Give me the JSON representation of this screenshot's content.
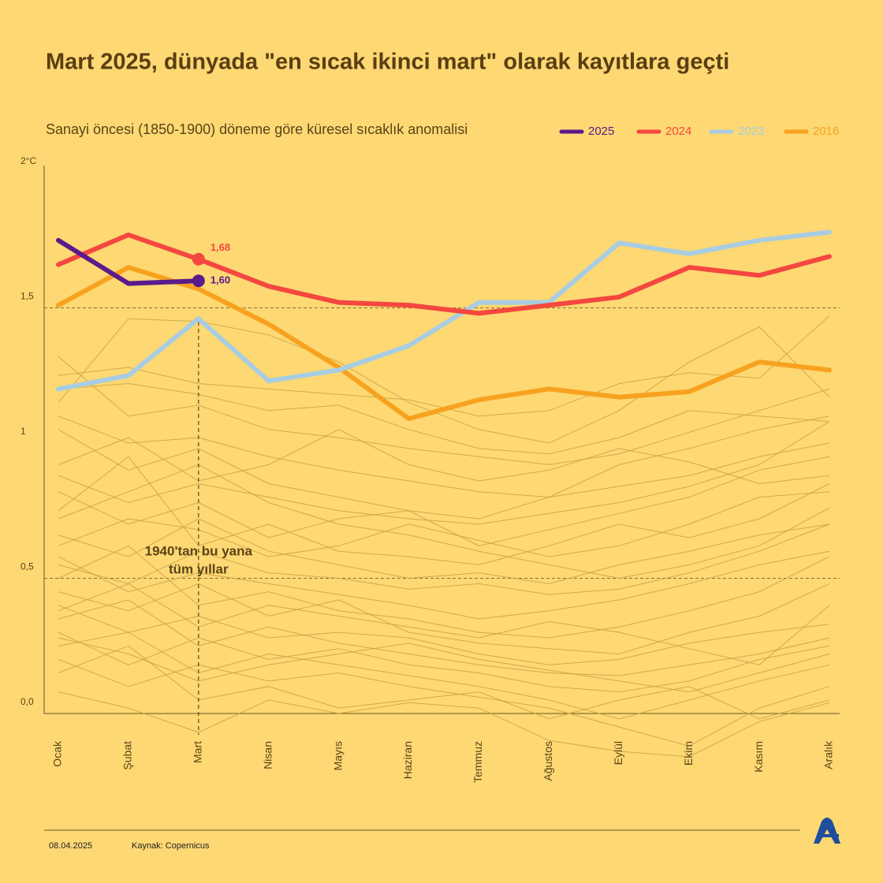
{
  "chart_data": {
    "type": "line",
    "title": "Mart 2025, dünyada \"en sıcak ikinci mart\" olarak kayıtlara geçti",
    "subtitle": "Sanayi öncesi (1850-1900) döneme göre küresel sıcaklık anomalisi",
    "categories": [
      "Ocak",
      "Şubat",
      "Mart",
      "Nisan",
      "Mayıs",
      "Haziran",
      "Temmuz",
      "Ağustos",
      "Eylül",
      "Ekim",
      "Kasım",
      "Aralık"
    ],
    "ylim": [
      0,
      2
    ],
    "yticks": [
      {
        "value": 0,
        "label": "0,0"
      },
      {
        "value": 0.5,
        "label": "0,5"
      },
      1,
      {
        "value": 1.5,
        "label": "1,5"
      },
      {
        "value": 2,
        "label": "2°C"
      }
    ],
    "gridlines": [
      0.5,
      1.5
    ],
    "annotation": [
      "1940'tan bu yana",
      "tüm yıllar"
    ],
    "background_color": "#c9a244",
    "background_series": [
      {
        "values": [
          1.32,
          1.1,
          1.14,
          1.05,
          1.02,
          0.98,
          0.95,
          0.92,
          0.96,
          1.04,
          1.12,
          1.2
        ]
      },
      {
        "values": [
          1.25,
          1.28,
          1.22,
          1.2,
          1.18,
          1.16,
          1.1,
          1.12,
          1.22,
          1.26,
          1.24,
          1.47
        ]
      },
      {
        "values": [
          1.15,
          1.46,
          1.45,
          1.4,
          1.3,
          1.15,
          1.05,
          1.0,
          1.12,
          1.3,
          1.43,
          1.17
        ]
      },
      {
        "values": [
          1.05,
          0.9,
          0.98,
          0.85,
          0.8,
          0.75,
          0.72,
          0.8,
          0.92,
          0.98,
          1.05,
          1.1
        ]
      },
      {
        "values": [
          0.92,
          1.02,
          0.86,
          0.92,
          1.05,
          0.92,
          0.86,
          0.9,
          0.98,
          0.93,
          0.85,
          0.88
        ]
      },
      {
        "values": [
          0.82,
          0.7,
          0.78,
          0.65,
          0.72,
          0.75,
          0.62,
          0.68,
          0.74,
          0.8,
          0.9,
          0.95
        ]
      },
      {
        "values": [
          0.75,
          0.95,
          0.62,
          0.7,
          0.6,
          0.58,
          0.55,
          0.62,
          0.7,
          0.65,
          0.72,
          0.85
        ]
      },
      {
        "values": [
          0.66,
          0.58,
          0.72,
          0.6,
          0.55,
          0.5,
          0.52,
          0.48,
          0.55,
          0.6,
          0.66,
          0.7
        ]
      },
      {
        "values": [
          0.58,
          0.45,
          0.52,
          0.48,
          0.44,
          0.4,
          0.35,
          0.38,
          0.42,
          0.48,
          0.55,
          0.6
        ]
      },
      {
        "values": [
          0.5,
          0.62,
          0.4,
          0.45,
          0.38,
          0.35,
          0.3,
          0.28,
          0.32,
          0.38,
          0.45,
          0.58
        ]
      },
      {
        "values": [
          0.45,
          0.38,
          0.48,
          0.36,
          0.42,
          0.3,
          0.26,
          0.24,
          0.22,
          0.3,
          0.36,
          0.48
        ]
      },
      {
        "values": [
          0.4,
          0.3,
          0.36,
          0.28,
          0.3,
          0.28,
          0.22,
          0.18,
          0.2,
          0.26,
          0.3,
          0.33
        ]
      },
      {
        "values": [
          0.35,
          0.42,
          0.25,
          0.32,
          0.26,
          0.22,
          0.18,
          0.15,
          0.14,
          0.18,
          0.22,
          0.28
        ]
      },
      {
        "values": [
          0.3,
          0.18,
          0.28,
          0.2,
          0.24,
          0.18,
          0.15,
          0.1,
          0.08,
          0.12,
          0.2,
          0.25
        ]
      },
      {
        "values": [
          0.25,
          0.3,
          0.15,
          0.22,
          0.18,
          0.14,
          0.1,
          0.05,
          -0.02,
          0.05,
          0.12,
          0.18
        ]
      },
      {
        "values": [
          0.2,
          0.1,
          0.18,
          0.12,
          0.15,
          0.1,
          0.06,
          0.02,
          -0.05,
          -0.12,
          0.02,
          0.1
        ]
      },
      {
        "values": [
          0.15,
          0.25,
          0.05,
          0.1,
          0.02,
          0.05,
          0.08,
          -0.02,
          0.05,
          0.1,
          -0.02,
          0.05
        ]
      },
      {
        "values": [
          0.08,
          0.02,
          -0.07,
          0.05,
          0.0,
          0.04,
          0.02,
          -0.1,
          -0.14,
          -0.16,
          -0.03,
          0.04
        ]
      },
      {
        "values": [
          0.62,
          0.72,
          0.68,
          0.58,
          0.62,
          0.7,
          0.64,
          0.58,
          0.62,
          0.7,
          0.8,
          0.82
        ]
      },
      {
        "values": [
          1.1,
          1.0,
          1.02,
          0.95,
          0.9,
          0.86,
          0.82,
          0.8,
          0.84,
          0.88,
          0.95,
          1.0
        ]
      },
      {
        "values": [
          0.88,
          0.78,
          0.85,
          0.8,
          0.75,
          0.72,
          0.7,
          0.74,
          0.78,
          0.84,
          0.92,
          1.08
        ]
      },
      {
        "values": [
          0.55,
          0.48,
          0.6,
          0.52,
          0.5,
          0.46,
          0.48,
          0.44,
          0.46,
          0.52,
          0.6,
          0.7
        ]
      },
      {
        "values": [
          0.38,
          0.48,
          0.32,
          0.4,
          0.36,
          0.32,
          0.28,
          0.34,
          0.3,
          0.24,
          0.18,
          0.4
        ]
      },
      {
        "values": [
          0.28,
          0.22,
          0.12,
          0.18,
          0.22,
          0.26,
          0.2,
          0.16,
          0.12,
          0.08,
          0.15,
          0.22
        ]
      },
      {
        "values": [
          0.72,
          0.82,
          0.92,
          0.78,
          0.7,
          0.66,
          0.6,
          0.55,
          0.5,
          0.55,
          0.62,
          0.76
        ]
      },
      {
        "values": [
          1.2,
          1.22,
          1.18,
          1.12,
          1.14,
          1.05,
          0.98,
          0.96,
          1.02,
          1.12,
          1.1,
          1.08
        ]
      }
    ],
    "series": [
      {
        "name": "2016",
        "color": "#f7a21e",
        "values": [
          1.51,
          1.65,
          1.57,
          1.44,
          1.28,
          1.09,
          1.16,
          1.2,
          1.17,
          1.19,
          1.3,
          1.27
        ]
      },
      {
        "name": "2023",
        "color": "#a8cde2",
        "values": [
          1.2,
          1.25,
          1.46,
          1.23,
          1.27,
          1.36,
          1.52,
          1.52,
          1.74,
          1.7,
          1.75,
          1.78
        ]
      },
      {
        "name": "2024",
        "color": "#f4473f",
        "values": [
          1.66,
          1.77,
          1.68,
          1.58,
          1.52,
          1.51,
          1.48,
          1.51,
          1.54,
          1.65,
          1.62,
          1.69
        ],
        "value_labels": [
          null,
          null,
          "1,68",
          null,
          null,
          null,
          null,
          null,
          null,
          null,
          null,
          null
        ]
      },
      {
        "name": "2025",
        "color": "#5a1a8c",
        "values": [
          1.75,
          1.59,
          1.6,
          null,
          null,
          null,
          null,
          null,
          null,
          null,
          null,
          null
        ],
        "value_labels": [
          null,
          null,
          "1,60",
          null,
          null,
          null,
          null,
          null,
          null,
          null,
          null,
          null
        ]
      }
    ],
    "legend_order": [
      "2025",
      "2024",
      "2023",
      "2016"
    ],
    "date": "08.04.2025",
    "source": "Kaynak: Copernicus"
  }
}
